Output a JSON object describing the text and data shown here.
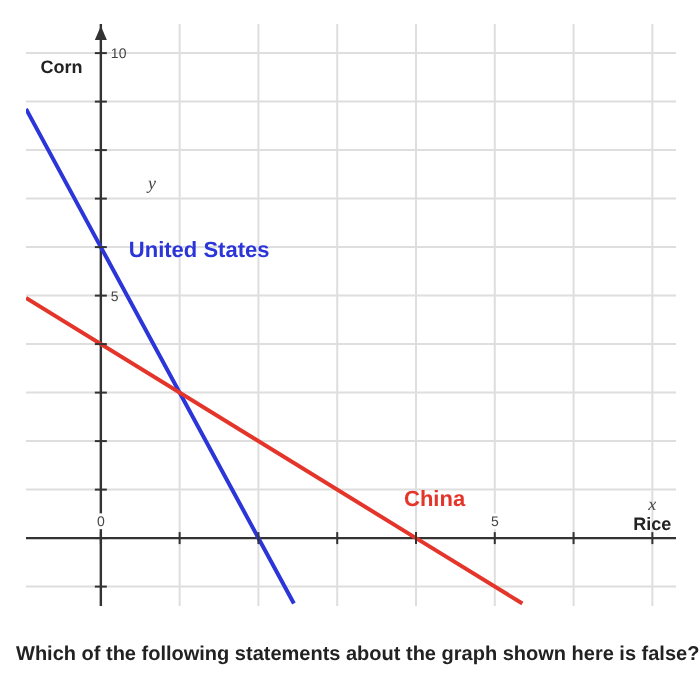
{
  "chart_data": {
    "type": "line",
    "xlabel": "Rice",
    "ylabel": "Corn",
    "annotations": [
      "y",
      "x",
      "Which of the following statements about the graph shown here is false?"
    ],
    "xlim": [
      -0.95,
      7.3
    ],
    "ylim": [
      -1.4,
      10.6
    ],
    "xticks": [
      0,
      {
        "value": 1,
        "label": null
      },
      {
        "value": 2,
        "label": null
      },
      {
        "value": 3,
        "label": null
      },
      {
        "value": 4,
        "label": null
      },
      5,
      {
        "value": 6,
        "label": null
      },
      {
        "value": 7,
        "label": null
      }
    ],
    "yticks": [
      {
        "value": -1,
        "label": null
      },
      {
        "value": 0,
        "label": null
      },
      {
        "value": 1,
        "label": null
      },
      {
        "value": 2,
        "label": null
      },
      {
        "value": 3,
        "label": null
      },
      {
        "value": 4,
        "label": null
      },
      5,
      {
        "value": 6,
        "label": null
      },
      {
        "value": 7,
        "label": null
      },
      {
        "value": 8,
        "label": null
      },
      {
        "value": 9,
        "label": null
      },
      10
    ],
    "grid": true,
    "legend": false,
    "marker": "none",
    "line_style": "solid",
    "series": [
      {
        "name": "United States",
        "color": "#2b35d8",
        "x": [
          -0.95,
          0,
          2.45
        ],
        "values": [
          8.85,
          6,
          -1.35
        ]
      },
      {
        "name": "China",
        "color": "#e4352b",
        "x": [
          -0.95,
          4,
          5.35
        ],
        "values": [
          4.95,
          0,
          -1.35
        ]
      }
    ]
  }
}
